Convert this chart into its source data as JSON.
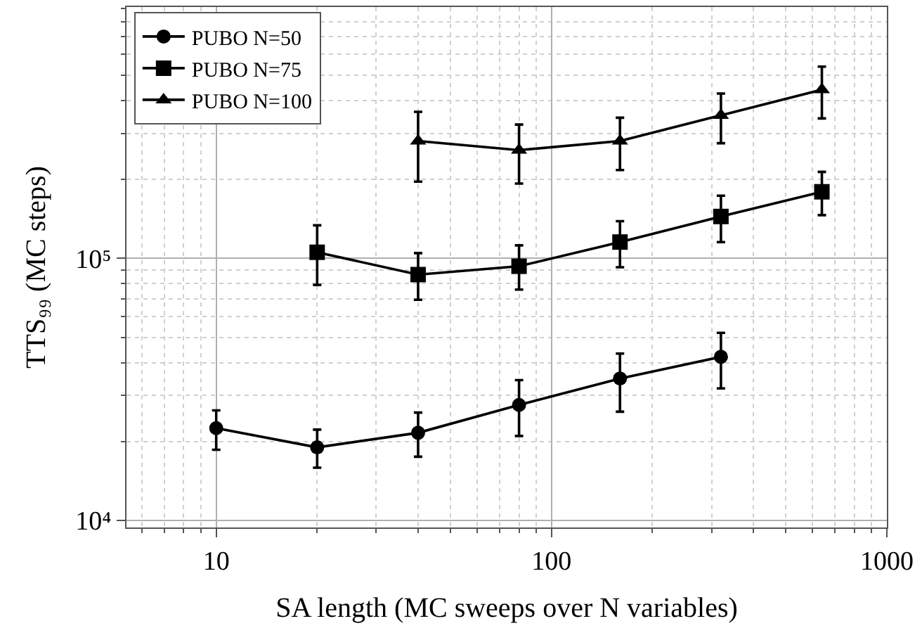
{
  "chart_data": {
    "type": "line",
    "xlabel": "SA length (MC sweeps over N variables)",
    "ylabel": "TTS₉₉ (MC steps)",
    "log": "xy",
    "grid": true,
    "legend": "top left",
    "line_style": "solid",
    "xlim": [
      5.4,
      1000
    ],
    "xticks": [
      10,
      100,
      1000
    ],
    "ylim": [
      9400,
      910000
    ],
    "yticks": [
      {
        "value": 10000,
        "label": "10⁴"
      },
      {
        "value": 100000,
        "label": "10⁵"
      }
    ],
    "series": [
      {
        "name": "PUBO N=50",
        "color": "#000000",
        "marker": "circle",
        "x": [
          10,
          20,
          40,
          80,
          160,
          320
        ],
        "values": [
          22500,
          19000,
          21600,
          27600,
          34800,
          42100
        ],
        "errors": [
          [
            18600,
            26300
          ],
          [
            15900,
            22200
          ],
          [
            17500,
            25800
          ],
          [
            21000,
            34300
          ],
          [
            26000,
            43300
          ],
          [
            31900,
            52000
          ]
        ]
      },
      {
        "name": "PUBO N=75",
        "color": "#000000",
        "marker": "square",
        "x": [
          20,
          40,
          80,
          160,
          320,
          640
        ],
        "values": [
          105500,
          86700,
          93300,
          115400,
          144500,
          179500
        ],
        "errors": [
          [
            79200,
            133700
          ],
          [
            69500,
            104700
          ],
          [
            76000,
            112100
          ],
          [
            92500,
            138600
          ],
          [
            115400,
            173500
          ],
          [
            146200,
            213800
          ]
        ]
      },
      {
        "name": "PUBO N=100",
        "color": "#000000",
        "marker": "triangle",
        "x": [
          40,
          80,
          160,
          320,
          640
        ],
        "values": [
          280500,
          258800,
          280500,
          351600,
          440300
        ],
        "errors": [
          [
            196200,
            362500
          ],
          [
            193000,
            324000
          ],
          [
            217300,
            344200
          ],
          [
            275000,
            425600
          ],
          [
            342000,
            539000
          ]
        ]
      }
    ]
  }
}
